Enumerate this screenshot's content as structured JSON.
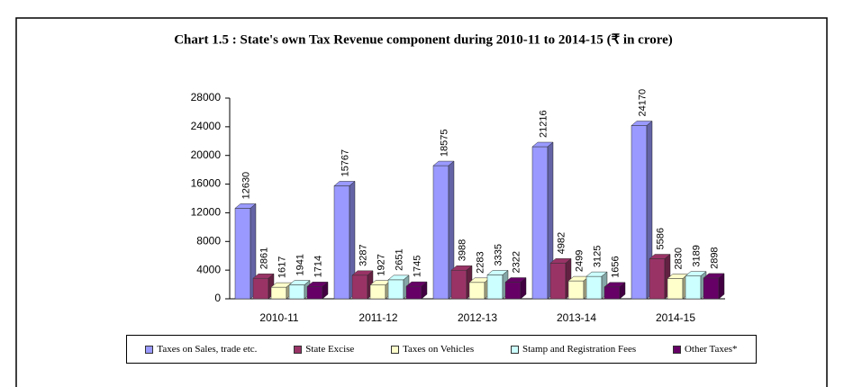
{
  "chart_data": {
    "type": "bar",
    "title": "Chart 1.5 : State's own Tax Revenue component during 2010-11 to 2014-15 (₹ in crore)",
    "categories": [
      "2010-11",
      "2011-12",
      "2012-13",
      "2013-14",
      "2014-15"
    ],
    "series": [
      {
        "name": "Taxes on Sales, trade etc.",
        "color": "#9999ff",
        "values": [
          12630,
          15767,
          18575,
          21216,
          24170
        ]
      },
      {
        "name": "State Excise",
        "color": "#993366",
        "values": [
          2861,
          3287,
          3988,
          4982,
          5586
        ]
      },
      {
        "name": "Taxes on Vehicles",
        "color": "#ffffcc",
        "values": [
          1617,
          1927,
          2283,
          2499,
          2830
        ]
      },
      {
        "name": "Stamp and Registration Fees",
        "color": "#ccffff",
        "values": [
          1941,
          2651,
          3335,
          3125,
          3189
        ]
      },
      {
        "name": "Other Taxes*",
        "color": "#660066",
        "values": [
          1714,
          1745,
          2322,
          1656,
          2898
        ]
      }
    ],
    "ylim": [
      0,
      28000
    ],
    "yticks": [
      0,
      4000,
      8000,
      12000,
      16000,
      20000,
      24000,
      28000
    ],
    "grid": false,
    "legend": "bottom"
  }
}
